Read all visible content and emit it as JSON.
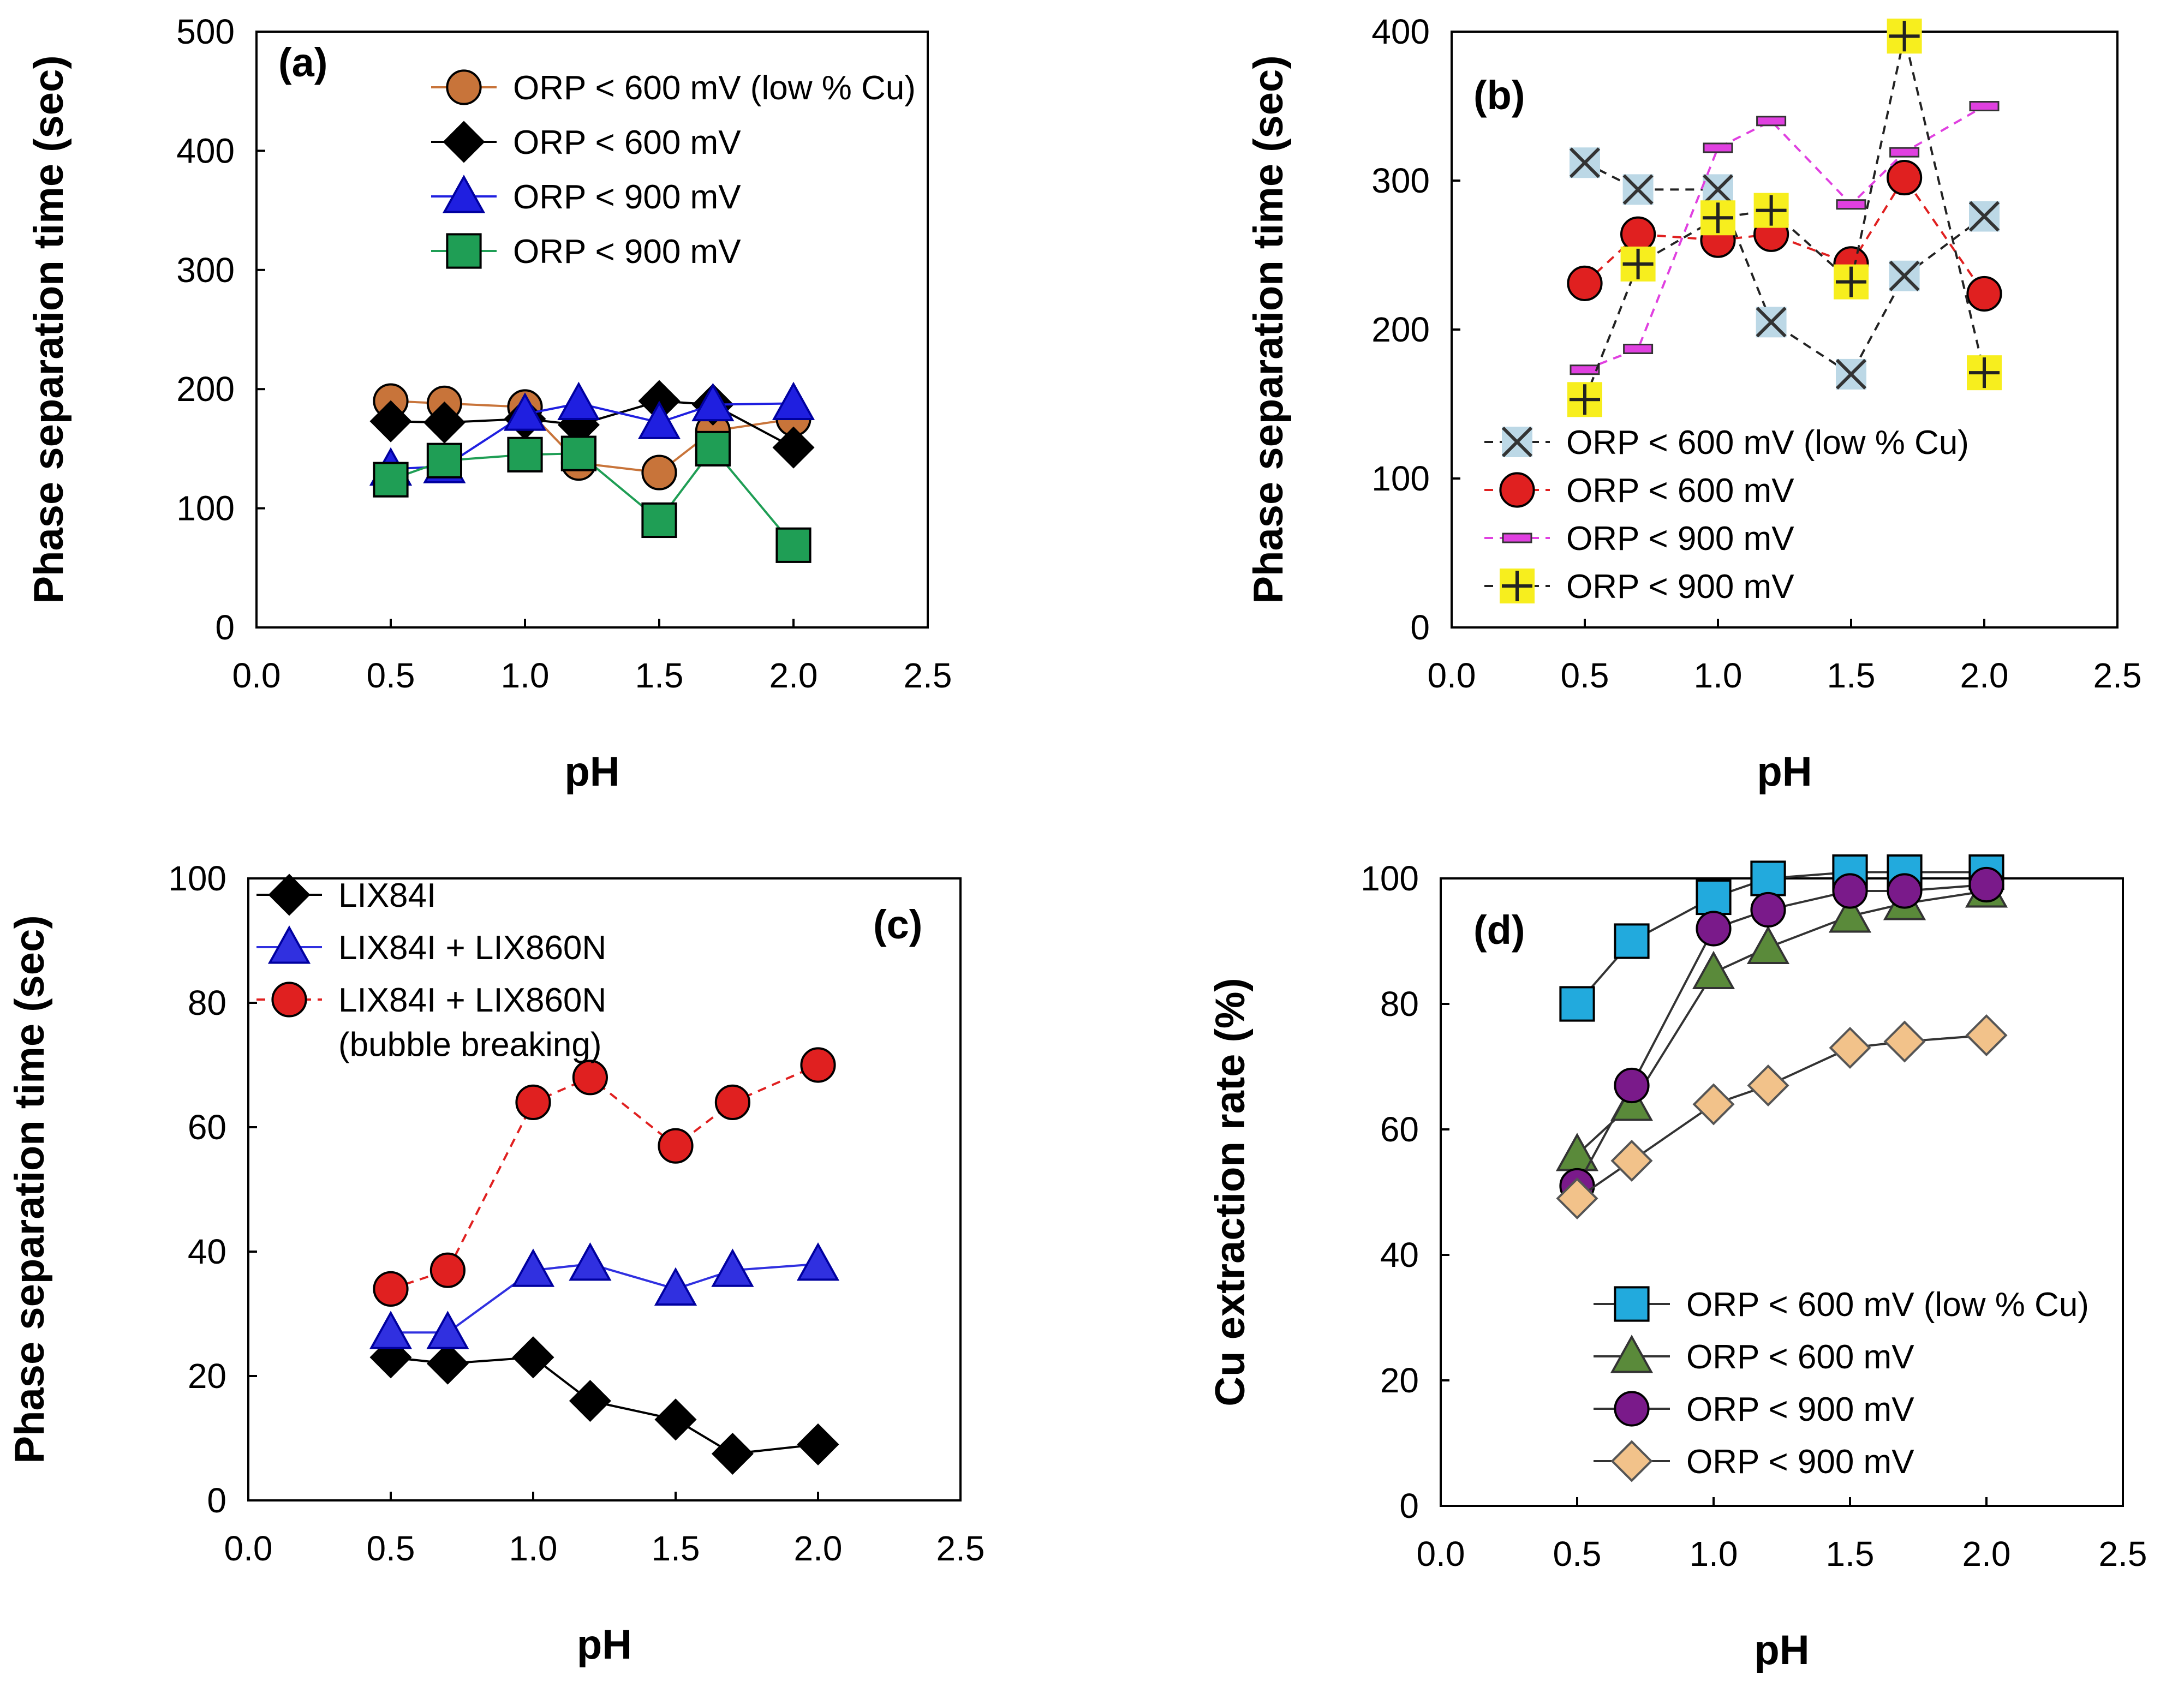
{
  "chart_data": [
    {
      "panel": "(a)",
      "type": "line",
      "xlabel": "pH",
      "ylabel": "Phase separation time (sec)",
      "xlim": [
        0,
        2.5
      ],
      "ylim": [
        0,
        500
      ],
      "xticks": [
        "0.0",
        "0.5",
        "1.0",
        "1.5",
        "2.0",
        "2.5"
      ],
      "yticks": [
        "0",
        "100",
        "200",
        "300",
        "400",
        "500"
      ],
      "x": [
        0.5,
        0.7,
        1.0,
        1.2,
        1.5,
        1.7,
        2.0
      ],
      "legend_position": "top-right",
      "series": [
        {
          "name": "ORP < 600 mV (low % Cu)",
          "color": "#C8743A",
          "marker": "circle",
          "dashed": false,
          "values": [
            190,
            188,
            185,
            138,
            130,
            165,
            175
          ]
        },
        {
          "name": "ORP < 600 mV",
          "color": "#000000",
          "marker": "diamond",
          "dashed": false,
          "values": [
            173,
            172,
            175,
            170,
            190,
            187,
            151
          ]
        },
        {
          "name": "ORP < 900 mV",
          "color": "#1F1FE0",
          "marker": "triangle",
          "dashed": false,
          "values": [
            133,
            135,
            179,
            188,
            172,
            187,
            188
          ]
        },
        {
          "name": "ORP < 900 mV",
          "color": "#1F9E55",
          "marker": "square",
          "dashed": false,
          "values": [
            124,
            140,
            145,
            146,
            90,
            150,
            69
          ]
        }
      ]
    },
    {
      "panel": "(b)",
      "type": "line",
      "xlabel": "pH",
      "ylabel": "Phase separation time (sec)",
      "xlim": [
        0,
        2.5
      ],
      "ylim": [
        0,
        400
      ],
      "xticks": [
        "0.0",
        "0.5",
        "1.0",
        "1.5",
        "2.0",
        "2.5"
      ],
      "yticks": [
        "0",
        "100",
        "200",
        "300",
        "400"
      ],
      "x": [
        0.5,
        0.7,
        1.0,
        1.2,
        1.5,
        1.7,
        2.0
      ],
      "legend_position": "bottom-left",
      "series": [
        {
          "name": "ORP < 600 mV (low % Cu)",
          "color": "#333333",
          "marker": "x",
          "dashed": true,
          "values": [
            312,
            294,
            294,
            205,
            170,
            236,
            276
          ]
        },
        {
          "name": "ORP < 600 mV",
          "color": "#E02020",
          "marker": "circle",
          "dashed": true,
          "values": [
            231,
            264,
            260,
            264,
            244,
            302,
            224
          ]
        },
        {
          "name": "ORP < 900 mV",
          "color": "#E040E0",
          "marker": "dash",
          "dashed": true,
          "values": [
            173,
            187,
            322,
            340,
            284,
            319,
            350
          ]
        },
        {
          "name": "ORP < 900 mV",
          "color": "#333333",
          "marker": "plus",
          "dashed": true,
          "values": [
            153,
            244,
            275,
            280,
            232,
            397,
            171
          ]
        }
      ]
    },
    {
      "panel": "(c)",
      "type": "line",
      "xlabel": "pH",
      "ylabel": "Phase separation time (sec)",
      "xlim": [
        0,
        2.5
      ],
      "ylim": [
        0,
        100
      ],
      "xticks": [
        "0.0",
        "0.5",
        "1.0",
        "1.5",
        "2.0",
        "2.5"
      ],
      "yticks": [
        "0",
        "20",
        "40",
        "60",
        "80",
        "100"
      ],
      "x": [
        0.5,
        0.7,
        1.0,
        1.2,
        1.5,
        1.7,
        2.0
      ],
      "legend_position": "top-left",
      "series": [
        {
          "name": "LIX84I",
          "color": "#000000",
          "marker": "diamond",
          "dashed": false,
          "values": [
            23,
            22,
            23,
            16,
            13,
            7.5,
            9
          ]
        },
        {
          "name": "LIX84I + LIX860N",
          "color": "#3030E0",
          "marker": "triangle",
          "dashed": false,
          "values": [
            27,
            27,
            37,
            38,
            34,
            37,
            38
          ]
        },
        {
          "name": "LIX84I + LIX860N",
          "name_line2": "(bubble breaking)",
          "color": "#E02020",
          "marker": "circle",
          "dashed": true,
          "values": [
            34,
            37,
            64,
            68,
            57,
            64,
            70
          ]
        }
      ]
    },
    {
      "panel": "(d)",
      "type": "line",
      "xlabel": "pH",
      "ylabel": "Cu extraction rate (%)",
      "xlim": [
        0,
        2.5
      ],
      "ylim": [
        0,
        100
      ],
      "xticks": [
        "0.0",
        "0.5",
        "1.0",
        "1.5",
        "2.0",
        "2.5"
      ],
      "yticks": [
        "0",
        "20",
        "40",
        "60",
        "80",
        "100"
      ],
      "x": [
        0.5,
        0.7,
        1.0,
        1.2,
        1.5,
        1.7,
        2.0
      ],
      "legend_position": "bottom-right",
      "series": [
        {
          "name": "ORP < 600 mV (low % Cu)",
          "color": "#22AADD",
          "marker": "square",
          "dashed": false,
          "values": [
            80,
            90,
            97,
            100,
            101,
            101,
            101
          ]
        },
        {
          "name": "ORP < 600 mV",
          "color": "#5A8A3A",
          "marker": "triangle",
          "dashed": false,
          "values": [
            56,
            64,
            85,
            89,
            94,
            96,
            98
          ]
        },
        {
          "name": "ORP < 900 mV",
          "color": "#7A1A8A",
          "marker": "circle",
          "dashed": false,
          "values": [
            51,
            67,
            92,
            95,
            98,
            98,
            99
          ]
        },
        {
          "name": "ORP < 900 mV",
          "color": "#F2C28A",
          "marker": "diamond",
          "dashed": false,
          "values": [
            49,
            55,
            64,
            67,
            73,
            74,
            75
          ]
        }
      ]
    }
  ]
}
